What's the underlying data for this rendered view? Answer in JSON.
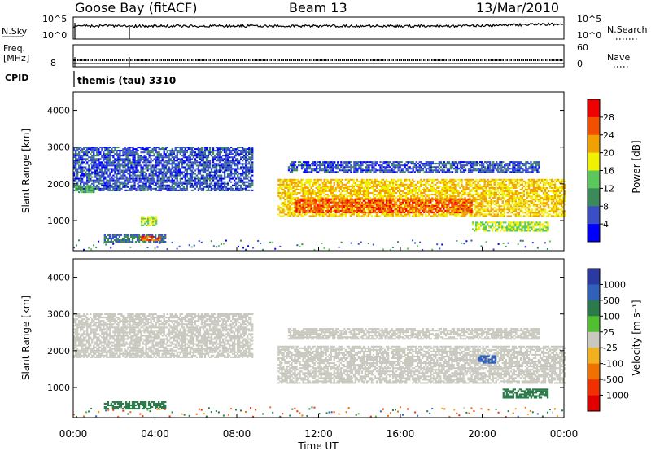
{
  "header": {
    "station": "Goose Bay (fitACF)",
    "beam": "Beam 13",
    "date": "13/Mar/2010"
  },
  "top_panels": {
    "nsky_label": "N.Sky",
    "nsky_ticks": [
      "10^5",
      "10^0"
    ],
    "nsearch_label": "N.Search",
    "nsearch_ticks": [
      "10^5",
      "10^0"
    ],
    "freq_label_1": "Freq.",
    "freq_label_2": "[MHz]",
    "freq_ticks": [
      "8"
    ],
    "nave_label": "Nave",
    "nave_ticks": [
      "60",
      "0"
    ],
    "cpid_label": "CPID",
    "cpid_text": "themis (tau) 3310"
  },
  "panel_power": {
    "ylabel": "Slant Range [km]",
    "yticks": [
      "4000",
      "3000",
      "2000",
      "1000"
    ],
    "colorbar_label": "Power [dB]",
    "colorbar_ticks": [
      "28",
      "24",
      "20",
      "16",
      "12",
      "8",
      "4"
    ],
    "colors": [
      "#0000ff",
      "#3a4fc6",
      "#3a8a5a",
      "#5ac85a",
      "#f0f000",
      "#f0a000",
      "#f05000",
      "#f00000"
    ]
  },
  "panel_velocity": {
    "ylabel": "Slant Range [km]",
    "yticks": [
      "4000",
      "3000",
      "2000",
      "1000"
    ],
    "colorbar_label": "Velocity [m s⁻¹]",
    "colorbar_ticks": [
      "1000",
      "500",
      "100",
      "25",
      "-25",
      "-100",
      "-500",
      "-1000"
    ],
    "colors": [
      "#2a3aa0",
      "#3060b8",
      "#2a7a4a",
      "#50c030",
      "#c8c8be",
      "#f0b020",
      "#f07000",
      "#f03000",
      "#e00000"
    ]
  },
  "x_axis": {
    "ticks": [
      "00:00",
      "04:00",
      "08:00",
      "12:00",
      "16:00",
      "20:00",
      "00:00"
    ],
    "label": "Time UT"
  },
  "chart_data": {
    "type": "heatmap",
    "title": "Goose Bay (fitACF)",
    "subtitle": "Beam 13",
    "date": "13/Mar/2010",
    "x_unit": "hours UT",
    "xlim": [
      0,
      24
    ],
    "xticks": [
      "00:00",
      "04:00",
      "08:00",
      "12:00",
      "16:00",
      "20:00",
      "00:00"
    ],
    "xlabel": "Time UT",
    "ylabel": "Slant Range [km]",
    "ylim": [
      180,
      4500
    ],
    "cpid": "themis (tau) 3310",
    "panels": [
      {
        "name": "Power",
        "unit": "dB",
        "colorbar": [
          4,
          8,
          12,
          16,
          20,
          24,
          28
        ],
        "regions": [
          {
            "t0": 0.0,
            "t1": 8.8,
            "r_start": 1800,
            "r_end": 3000,
            "level": 8
          },
          {
            "t0": 0.0,
            "t1": 1.0,
            "r_start": 1750,
            "r_end": 1950,
            "level": 14
          },
          {
            "t0": 1.5,
            "t1": 4.5,
            "r_start": 400,
            "r_end": 620,
            "level": 10
          },
          {
            "t0": 3.3,
            "t1": 4.2,
            "r_start": 450,
            "r_end": 580,
            "level": 28
          },
          {
            "t0": 3.3,
            "t1": 4.1,
            "r_start": 850,
            "r_end": 1100,
            "level": 18
          },
          {
            "t0": 10.0,
            "t1": 24.0,
            "r_start": 1100,
            "r_end": 2100,
            "level": 22
          },
          {
            "t0": 10.8,
            "t1": 19.5,
            "r_start": 1200,
            "r_end": 1600,
            "level": 28
          },
          {
            "t0": 10.5,
            "t1": 22.8,
            "r_start": 2300,
            "r_end": 2600,
            "level": 8
          },
          {
            "t0": 19.5,
            "t1": 23.2,
            "r_start": 700,
            "r_end": 950,
            "level": 18
          }
        ]
      },
      {
        "name": "Velocity",
        "unit": "m s^-1",
        "colorbar": [
          -1000,
          -500,
          -100,
          -25,
          25,
          100,
          500,
          1000
        ],
        "regions": [
          {
            "t0": 0.0,
            "t1": 8.8,
            "r_start": 1800,
            "r_end": 3000,
            "value": 0
          },
          {
            "t0": 10.0,
            "t1": 24.0,
            "r_start": 1100,
            "r_end": 2100,
            "value": 0
          },
          {
            "t0": 10.5,
            "t1": 22.8,
            "r_start": 2300,
            "r_end": 2600,
            "value": 0
          },
          {
            "t0": 1.5,
            "t1": 4.5,
            "r_start": 400,
            "r_end": 620,
            "value": 150
          },
          {
            "t0": 21.0,
            "t1": 23.2,
            "r_start": 700,
            "r_end": 950,
            "value": 150
          },
          {
            "t0": 19.8,
            "t1": 20.6,
            "r_start": 1650,
            "r_end": 1850,
            "value": 600
          }
        ]
      }
    ]
  }
}
